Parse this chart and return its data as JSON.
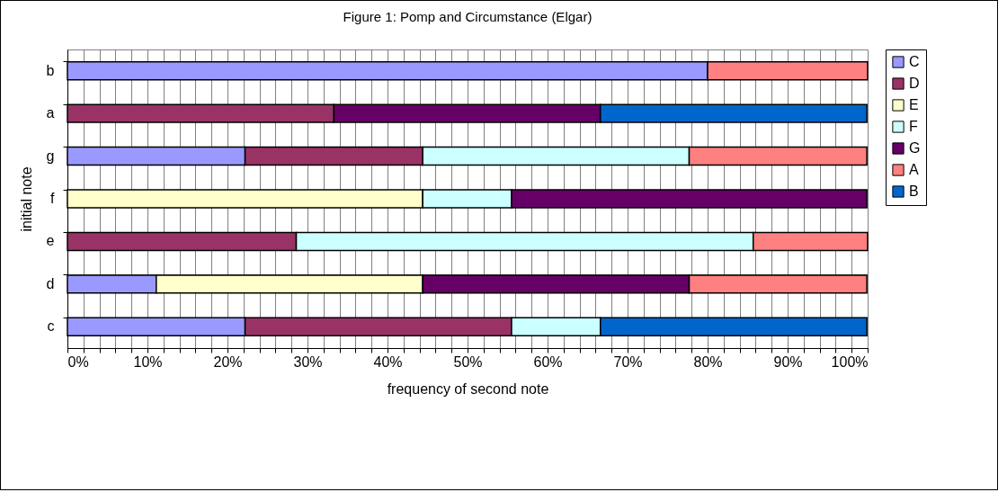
{
  "chart_data": {
    "type": "bar",
    "orientation": "horizontal",
    "stacked": true,
    "title": "Figure 1:  Pomp and Circumstance (Elgar)",
    "xlabel": "frequency of second note",
    "ylabel": "initial note",
    "categories": [
      "b",
      "a",
      "g",
      "f",
      "e",
      "d",
      "c"
    ],
    "series": [
      {
        "name": "C",
        "color": "#9999ff",
        "values": [
          80,
          null,
          22.2,
          null,
          null,
          11.1,
          22.2
        ]
      },
      {
        "name": "D",
        "color": "#993366",
        "values": [
          null,
          33.3,
          22.2,
          null,
          28.6,
          null,
          33.3
        ]
      },
      {
        "name": "E",
        "color": "#ffffcc",
        "values": [
          null,
          null,
          null,
          44.4,
          null,
          33.3,
          null
        ]
      },
      {
        "name": "F",
        "color": "#ccffff",
        "values": [
          null,
          null,
          33.3,
          11.1,
          57.1,
          null,
          11.1
        ]
      },
      {
        "name": "G",
        "color": "#660066",
        "values": [
          null,
          33.3,
          null,
          44.4,
          null,
          33.3,
          null
        ]
      },
      {
        "name": "A",
        "color": "#ff8080",
        "values": [
          20,
          null,
          22.2,
          null,
          14.3,
          22.2,
          null
        ]
      },
      {
        "name": "B",
        "color": "#0066cc",
        "values": [
          null,
          33.3,
          null,
          null,
          null,
          null,
          33.3
        ]
      }
    ],
    "xlim": [
      0,
      100
    ],
    "xticks": [
      {
        "value": 0,
        "label": "0%"
      },
      {
        "value": 2,
        "label": null
      },
      {
        "value": 4,
        "label": null
      },
      {
        "value": 6,
        "label": null
      },
      {
        "value": 8,
        "label": null
      },
      {
        "value": 10,
        "label": "10%"
      },
      {
        "value": 12,
        "label": null
      },
      {
        "value": 14,
        "label": null
      },
      {
        "value": 16,
        "label": null
      },
      {
        "value": 18,
        "label": null
      },
      {
        "value": 20,
        "label": "20%"
      },
      {
        "value": 22,
        "label": null
      },
      {
        "value": 24,
        "label": null
      },
      {
        "value": 26,
        "label": null
      },
      {
        "value": 28,
        "label": null
      },
      {
        "value": 30,
        "label": "30%"
      },
      {
        "value": 32,
        "label": null
      },
      {
        "value": 34,
        "label": null
      },
      {
        "value": 36,
        "label": null
      },
      {
        "value": 38,
        "label": null
      },
      {
        "value": 40,
        "label": "40%"
      },
      {
        "value": 42,
        "label": null
      },
      {
        "value": 44,
        "label": null
      },
      {
        "value": 46,
        "label": null
      },
      {
        "value": 48,
        "label": null
      },
      {
        "value": 50,
        "label": "50%"
      },
      {
        "value": 52,
        "label": null
      },
      {
        "value": 54,
        "label": null
      },
      {
        "value": 56,
        "label": null
      },
      {
        "value": 58,
        "label": null
      },
      {
        "value": 60,
        "label": "60%"
      },
      {
        "value": 62,
        "label": null
      },
      {
        "value": 64,
        "label": null
      },
      {
        "value": 66,
        "label": null
      },
      {
        "value": 68,
        "label": null
      },
      {
        "value": 70,
        "label": "70%"
      },
      {
        "value": 72,
        "label": null
      },
      {
        "value": 74,
        "label": null
      },
      {
        "value": 76,
        "label": null
      },
      {
        "value": 78,
        "label": null
      },
      {
        "value": 80,
        "label": "80%"
      },
      {
        "value": 82,
        "label": null
      },
      {
        "value": 84,
        "label": null
      },
      {
        "value": 86,
        "label": null
      },
      {
        "value": 88,
        "label": null
      },
      {
        "value": 90,
        "label": "90%"
      },
      {
        "value": 92,
        "label": null
      },
      {
        "value": 94,
        "label": null
      },
      {
        "value": 96,
        "label": null
      },
      {
        "value": 98,
        "label": null
      },
      {
        "value": 100,
        "label": "100%"
      }
    ],
    "grid": true,
    "legend": "right"
  }
}
